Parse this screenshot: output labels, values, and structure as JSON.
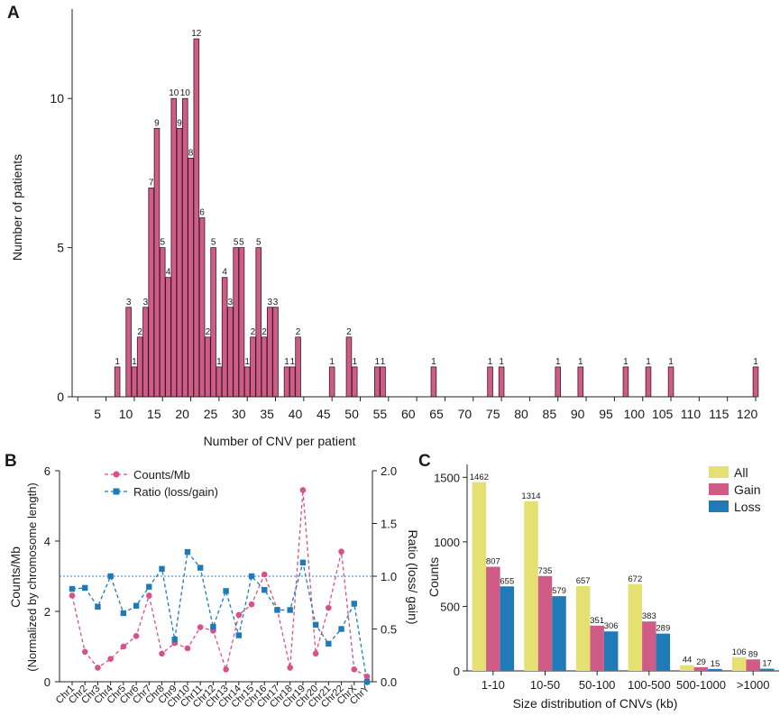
{
  "panels": {
    "a": "A",
    "b": "B",
    "c": "C"
  },
  "colors": {
    "bar_a": "#cf5c86",
    "counts": "#d9508a",
    "ratio": "#1f7ab8",
    "all": "#e4e072",
    "gain": "#cf5c86",
    "loss": "#1f7ab8",
    "refline": "#2a86c8"
  },
  "chart_data": [
    {
      "id": "A",
      "type": "bar",
      "xlabel": "Number of CNV per patient",
      "ylabel": "Number of patients",
      "xlim": [
        1,
        122
      ],
      "ylim": [
        0,
        13
      ],
      "xticks": [
        5,
        10,
        15,
        20,
        25,
        30,
        35,
        40,
        45,
        50,
        55,
        60,
        65,
        70,
        75,
        80,
        85,
        90,
        95,
        100,
        105,
        110,
        115,
        120
      ],
      "yticks": [
        0,
        5,
        10
      ],
      "x": [
        9,
        11,
        12,
        13,
        14,
        15,
        16,
        17,
        18,
        19,
        20,
        21,
        22,
        23,
        24,
        25,
        26,
        27,
        28,
        29,
        30,
        31,
        32,
        33,
        34,
        35,
        36,
        37,
        39,
        40,
        41,
        47,
        50,
        51,
        55,
        56,
        65,
        75,
        77,
        87,
        91,
        99,
        103,
        107,
        122
      ],
      "values": [
        1,
        3,
        1,
        2,
        3,
        7,
        9,
        5,
        4,
        10,
        9,
        10,
        8,
        12,
        6,
        2,
        5,
        1,
        4,
        3,
        5,
        5,
        1,
        2,
        5,
        2,
        3,
        3,
        1,
        1,
        2,
        1,
        2,
        1,
        1,
        1,
        1,
        1,
        1,
        1,
        1,
        1,
        1,
        1,
        1
      ]
    },
    {
      "id": "B",
      "type": "line",
      "ylabel": "Counts/Mb",
      "ylabel_sub": "(Normalized by chromosome length)",
      "y2label": "Ratio (loss/ gain)",
      "ylim": [
        0,
        6
      ],
      "yticks": [
        0,
        2,
        4,
        6
      ],
      "y2lim": [
        0,
        2.0
      ],
      "y2ticks": [
        "0.0",
        "0.5",
        "1.0",
        "1.5",
        "2.0"
      ],
      "reference_line_ratio": 1.0,
      "categories": [
        "Chr1",
        "Chr2",
        "Chr3",
        "Chr4",
        "Chr5",
        "Chr6",
        "Chr7",
        "Chr8",
        "Chr9",
        "Chr10",
        "Chr11",
        "Chr12",
        "Chr13",
        "Chr14",
        "Chr15",
        "Chr16",
        "Chr17",
        "Chr18",
        "Chr19",
        "Chr20",
        "Chr21",
        "Chr22",
        "ChrX",
        "ChrY"
      ],
      "series": [
        {
          "name": "Counts/Mb",
          "axis": "left",
          "values": [
            2.45,
            0.85,
            0.4,
            0.65,
            1.0,
            1.3,
            2.45,
            0.8,
            1.1,
            0.95,
            1.55,
            1.45,
            0.35,
            1.9,
            2.2,
            3.05,
            2.05,
            0.4,
            5.45,
            0.8,
            2.1,
            3.7,
            0.35,
            0.15
          ]
        },
        {
          "name": "Ratio (loss/gain)",
          "axis": "right",
          "values": [
            0.88,
            0.89,
            0.71,
            1.0,
            0.65,
            0.72,
            0.9,
            1.07,
            0.4,
            1.23,
            1.08,
            0.52,
            0.86,
            0.44,
            1.0,
            0.87,
            0.68,
            0.68,
            1.13,
            0.54,
            0.36,
            0.5,
            0.74,
            0.0
          ]
        }
      ]
    },
    {
      "id": "C",
      "type": "bar",
      "xlabel": "Size distribution of CNVs (kb)",
      "ylabel": "Counts",
      "ylim": [
        0,
        1600
      ],
      "yticks": [
        0,
        500,
        1000,
        1500
      ],
      "categories": [
        "1-10",
        "10-50",
        "50-100",
        "100-500",
        "500-1000",
        ">1000"
      ],
      "legend": "top-right",
      "series": [
        {
          "name": "All",
          "values": [
            1462,
            1314,
            657,
            672,
            44,
            106
          ]
        },
        {
          "name": "Gain",
          "values": [
            807,
            735,
            351,
            383,
            29,
            89
          ]
        },
        {
          "name": "Loss",
          "values": [
            655,
            579,
            306,
            289,
            15,
            17
          ]
        }
      ]
    }
  ]
}
